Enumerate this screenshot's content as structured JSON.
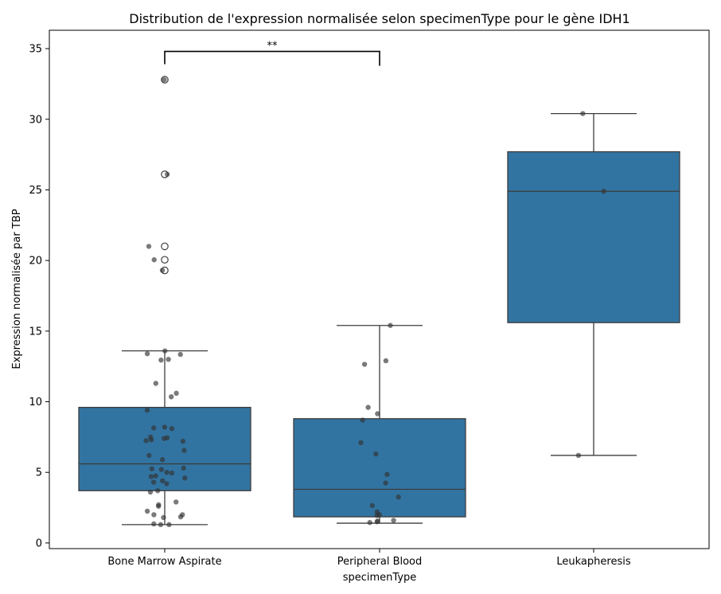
{
  "chart_data": {
    "type": "box",
    "title": "Distribution de l'expression normalisée selon specimenType pour le gène IDH1",
    "xlabel": "specimenType",
    "ylabel": "Expression normalisée par TBP",
    "ylim": [
      -0.4,
      36.3
    ],
    "yticks": [
      0,
      5,
      10,
      15,
      20,
      25,
      30,
      35
    ],
    "box_color": "#3274a1",
    "point_color": "#333333",
    "grid": false,
    "categories": [
      "Bone Marrow Aspirate",
      "Peripheral Blood",
      "Leukapheresis"
    ],
    "boxes": [
      {
        "category": "Bone Marrow Aspirate",
        "whisker_low": 1.3,
        "q1": 3.7,
        "median": 5.6,
        "q3": 9.6,
        "whisker_high": 13.6,
        "outliers": [
          32.8,
          26.1,
          21.0,
          20.05,
          19.3
        ]
      },
      {
        "category": "Peripheral Blood",
        "whisker_low": 1.4,
        "q1": 1.85,
        "median": 3.8,
        "q3": 8.8,
        "whisker_high": 15.4,
        "outliers": []
      },
      {
        "category": "Leukapheresis",
        "whisker_low": 6.2,
        "q1": 15.6,
        "median": 24.9,
        "q3": 27.7,
        "whisker_high": 30.4,
        "outliers": []
      }
    ],
    "points": [
      {
        "category": "Bone Marrow Aspirate",
        "values": [
          32.8,
          26.1,
          21.0,
          20.05,
          19.3,
          13.6,
          13.4,
          13.35,
          13.0,
          12.95,
          11.3,
          10.6,
          10.35,
          9.4,
          8.2,
          8.15,
          8.1,
          7.5,
          7.45,
          7.4,
          7.3,
          7.25,
          7.2,
          6.55,
          6.2,
          5.9,
          5.3,
          5.25,
          5.2,
          5.0,
          4.95,
          4.75,
          4.7,
          4.6,
          4.4,
          4.3,
          4.2,
          3.7,
          3.6,
          2.9,
          2.7,
          2.6,
          2.25,
          2.0,
          2.0,
          1.85,
          1.8,
          1.35,
          1.3,
          1.3
        ]
      },
      {
        "category": "Peripheral Blood",
        "values": [
          15.4,
          12.9,
          12.65,
          9.6,
          9.15,
          8.7,
          7.1,
          6.3,
          4.85,
          4.25,
          3.25,
          2.65,
          2.2,
          2.0,
          1.95,
          1.6,
          1.55,
          1.5,
          1.45
        ]
      },
      {
        "category": "Leukapheresis",
        "values": [
          30.4,
          24.9,
          6.2
        ]
      }
    ],
    "annotations": [
      {
        "type": "significance_bracket",
        "from": "Bone Marrow Aspirate",
        "to": "Peripheral Blood",
        "y": 34.8,
        "text": "**"
      }
    ]
  }
}
